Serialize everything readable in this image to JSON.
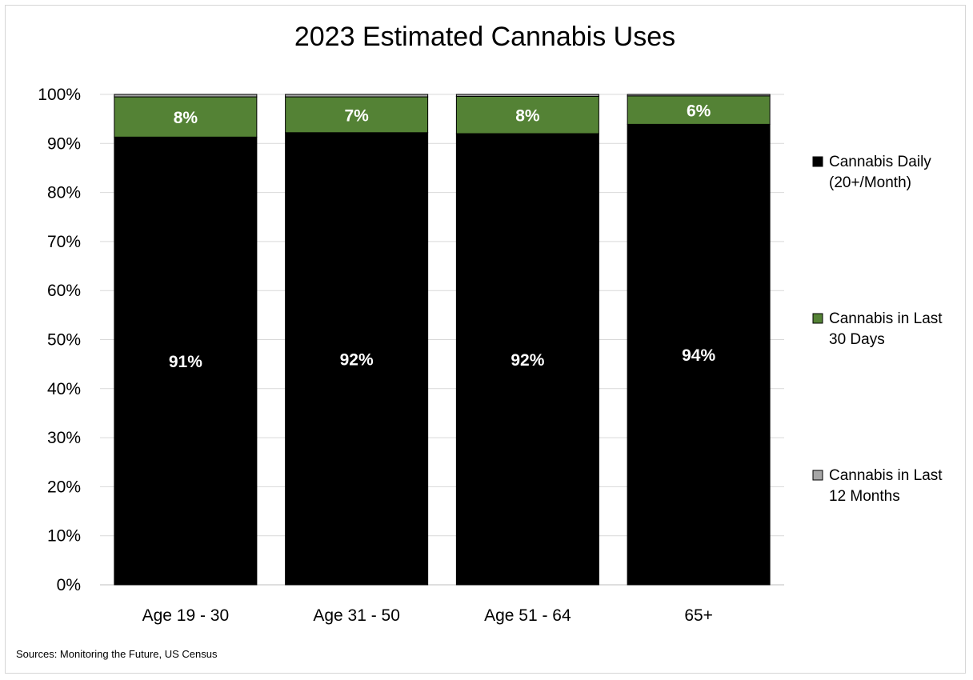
{
  "chart_data": {
    "type": "bar",
    "stacked": true,
    "title": "2023 Estimated Cannabis Uses",
    "xlabel": "",
    "ylabel": "",
    "categories": [
      "Age 19 - 30",
      "Age 31 - 50",
      "Age 51 - 64",
      "65+"
    ],
    "ylim": [
      0,
      100
    ],
    "yticks": [
      "0%",
      "10%",
      "20%",
      "30%",
      "40%",
      "50%",
      "60%",
      "70%",
      "80%",
      "90%",
      "100%"
    ],
    "grid": true,
    "legend_position": "right",
    "series": [
      {
        "name": "Cannabis Daily (20+/Month)",
        "legend_lines": [
          "Cannabis Daily",
          "(20+/Month)"
        ],
        "color": "#000000",
        "values": [
          91.3,
          92.2,
          92.0,
          93.9
        ],
        "labels": [
          "91%",
          "92%",
          "92%",
          "94%"
        ]
      },
      {
        "name": "Cannabis in Last 30 Days",
        "legend_lines": [
          "Cannabis in Last",
          "30 Days"
        ],
        "color": "#548235",
        "values": [
          8.2,
          7.3,
          7.6,
          5.8
        ],
        "labels": [
          "8%",
          "7%",
          "8%",
          "6%"
        ]
      },
      {
        "name": "Cannabis in Last 12 Months",
        "legend_lines": [
          "Cannabis in Last",
          "12 Months"
        ],
        "color": "#a6a6a6",
        "values": [
          0.5,
          0.5,
          0.4,
          0.3
        ],
        "labels": [
          "",
          "",
          "",
          ""
        ]
      }
    ]
  },
  "source": "Sources: Monitoring the Future, US Census"
}
